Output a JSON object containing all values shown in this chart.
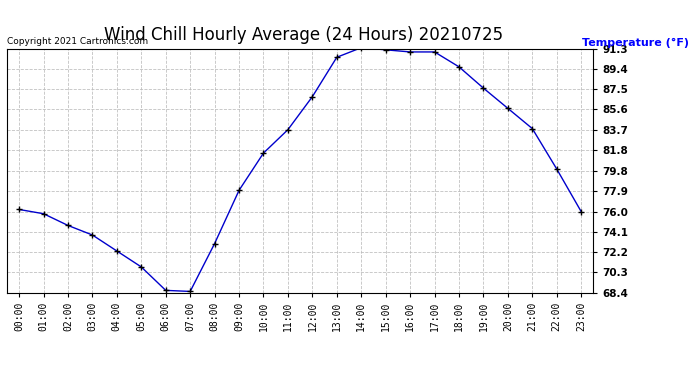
{
  "title": "Wind Chill Hourly Average (24 Hours) 20210725",
  "copyright_text": "Copyright 2021 Cartronics.com",
  "ylabel": "Temperature (°F)",
  "hours": [
    0,
    1,
    2,
    3,
    4,
    5,
    6,
    7,
    8,
    9,
    10,
    11,
    12,
    13,
    14,
    15,
    16,
    17,
    18,
    19,
    20,
    21,
    22,
    23
  ],
  "x_labels": [
    "00:00",
    "01:00",
    "02:00",
    "03:00",
    "04:00",
    "05:00",
    "06:00",
    "07:00",
    "08:00",
    "09:00",
    "10:00",
    "11:00",
    "12:00",
    "13:00",
    "14:00",
    "15:00",
    "16:00",
    "17:00",
    "18:00",
    "19:00",
    "20:00",
    "21:00",
    "22:00",
    "23:00"
  ],
  "values": [
    76.2,
    75.8,
    74.7,
    73.8,
    72.3,
    70.8,
    68.6,
    68.5,
    73.0,
    78.0,
    81.5,
    83.7,
    86.8,
    90.5,
    91.4,
    91.2,
    91.0,
    91.0,
    89.6,
    87.6,
    85.7,
    83.8,
    80.0,
    76.0
  ],
  "line_color": "#0000cc",
  "marker_color": "#000000",
  "background_color": "#ffffff",
  "grid_color": "#bbbbbb",
  "title_fontsize": 12,
  "ylabel_color": "#0000ff",
  "copyright_color": "#000000",
  "ylim_min": 68.4,
  "ylim_max": 91.3,
  "yticks": [
    68.4,
    70.3,
    72.2,
    74.1,
    76.0,
    77.9,
    79.8,
    81.8,
    83.7,
    85.6,
    87.5,
    89.4,
    91.3
  ]
}
